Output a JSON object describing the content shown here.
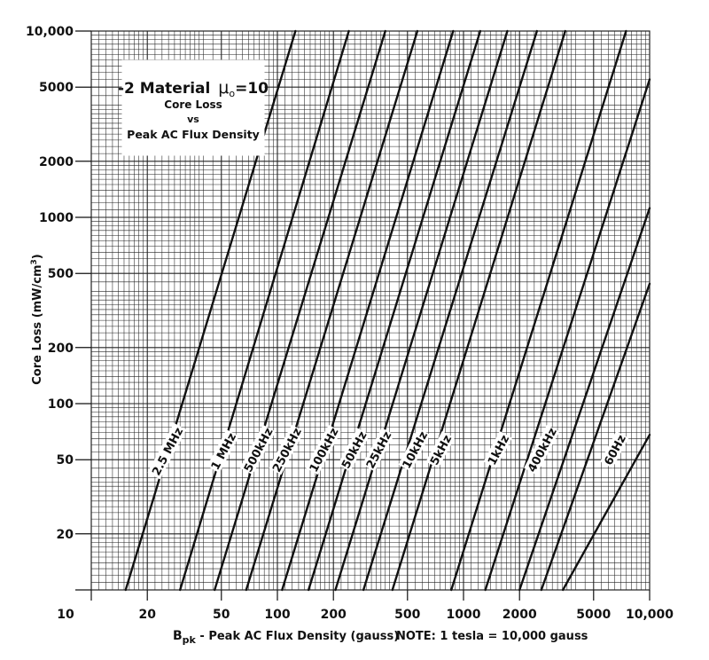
{
  "chart_data": {
    "type": "line",
    "title": "-2 Material",
    "title_mu": "μ",
    "title_mu_sub": "o",
    "title_mu_value": "=10",
    "subtitle_1": "Core Loss",
    "subtitle_2": "vs",
    "subtitle_3": "Peak AC Flux Density",
    "xlabel_main": "B",
    "xlabel_sub": "pk",
    "xlabel_rest": " - Peak AC Flux Density (gauss)",
    "note": "NOTE: 1 tesla = 10,000 gauss",
    "ylabel_main": "Core Loss (mW/cm",
    "ylabel_sup": "3",
    "ylabel_end": ")",
    "x_scale": "log",
    "y_scale": "log",
    "xlim": [
      10,
      10000
    ],
    "ylim": [
      10,
      10000
    ],
    "grid": true,
    "x_ticks": [
      "10",
      "20",
      "50",
      "100",
      "200",
      "500",
      "1000",
      "2000",
      "5000",
      "10,000"
    ],
    "x_tick_values": [
      10,
      20,
      50,
      100,
      200,
      500,
      1000,
      2000,
      5000,
      10000
    ],
    "y_ticks": [
      "20",
      "50",
      "100",
      "200",
      "500",
      "1000",
      "2000",
      "5000",
      "10,000"
    ],
    "y_tick_values": [
      20,
      50,
      100,
      200,
      500,
      1000,
      2000,
      5000,
      10000
    ],
    "series": [
      {
        "name": "2.5 MHz",
        "points": [
          [
            15.3,
            10
          ],
          [
            125,
            10000
          ]
        ]
      },
      {
        "name": "1 MHz",
        "points": [
          [
            30,
            10
          ],
          [
            242,
            10000
          ]
        ]
      },
      {
        "name": "500kHz",
        "points": [
          [
            46,
            10
          ],
          [
            380,
            10000
          ]
        ]
      },
      {
        "name": "250kHz",
        "points": [
          [
            68,
            10
          ],
          [
            565,
            10000
          ]
        ]
      },
      {
        "name": "100kHz",
        "points": [
          [
            106,
            10
          ],
          [
            880,
            10000
          ]
        ]
      },
      {
        "name": "50kHz",
        "points": [
          [
            147,
            10
          ],
          [
            1230,
            10000
          ]
        ]
      },
      {
        "name": "25kHz",
        "points": [
          [
            205,
            10
          ],
          [
            1720,
            10000
          ]
        ]
      },
      {
        "name": "10kHz",
        "points": [
          [
            290,
            10
          ],
          [
            2480,
            10000
          ]
        ]
      },
      {
        "name": "5kHz",
        "points": [
          [
            415,
            10
          ],
          [
            3520,
            10000
          ]
        ]
      },
      {
        "name": "1kHz",
        "points": [
          [
            860,
            10
          ],
          [
            7470,
            10000
          ]
        ]
      },
      {
        "name": "400kHz",
        "points": [
          [
            1310,
            10
          ],
          [
            10000,
            5500
          ]
        ]
      },
      {
        "name": "60Hz",
        "points": [
          [
            3420,
            10
          ],
          [
            10000,
            68
          ]
        ]
      }
    ],
    "extra_lines": [
      {
        "points": [
          [
            2000,
            10
          ],
          [
            10000,
            1120
          ]
        ]
      },
      {
        "points": [
          [
            2620,
            10
          ],
          [
            10000,
            440
          ]
        ]
      }
    ],
    "label_positions_data": [
      {
        "name": "2.5 MHz",
        "x": 26,
        "y": 55
      },
      {
        "name": "1 MHz",
        "x": 52,
        "y": 55
      },
      {
        "name": "500kHz",
        "x": 80,
        "y": 56
      },
      {
        "name": "250kHz",
        "x": 114,
        "y": 56
      },
      {
        "name": "100kHz",
        "x": 180,
        "y": 56
      },
      {
        "name": "50kHz",
        "x": 262,
        "y": 56
      },
      {
        "name": "25kHz",
        "x": 355,
        "y": 56
      },
      {
        "name": "10kHz",
        "x": 555,
        "y": 56
      },
      {
        "name": "5kHz",
        "x": 765,
        "y": 56
      },
      {
        "name": "1kHz",
        "x": 1560,
        "y": 56
      },
      {
        "name": "400kHz",
        "x": 2680,
        "y": 56
      },
      {
        "name": "60Hz",
        "x": 6600,
        "y": 56
      }
    ],
    "colors": {
      "line": "#111111",
      "grid": "#222222",
      "background": "#ffffff"
    }
  }
}
